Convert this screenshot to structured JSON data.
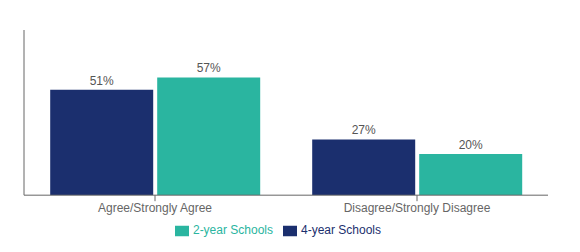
{
  "chart_data": {
    "type": "bar",
    "categories": [
      "Agree/Strongly Agree",
      "Disagree/Strongly Disagree"
    ],
    "series": [
      {
        "name": "4-year Schools",
        "color": "#1b2f6e",
        "values": [
          51,
          27
        ],
        "value_labels": [
          "51%",
          "27%"
        ]
      },
      {
        "name": "2-year Schools",
        "color": "#2ab5a0",
        "values": [
          57,
          20
        ],
        "value_labels": [
          "57%",
          "20%"
        ]
      }
    ],
    "ylim": [
      0,
      80
    ],
    "grid": false,
    "legend": "bottom",
    "data_labels": true,
    "tick_labels": "x"
  }
}
